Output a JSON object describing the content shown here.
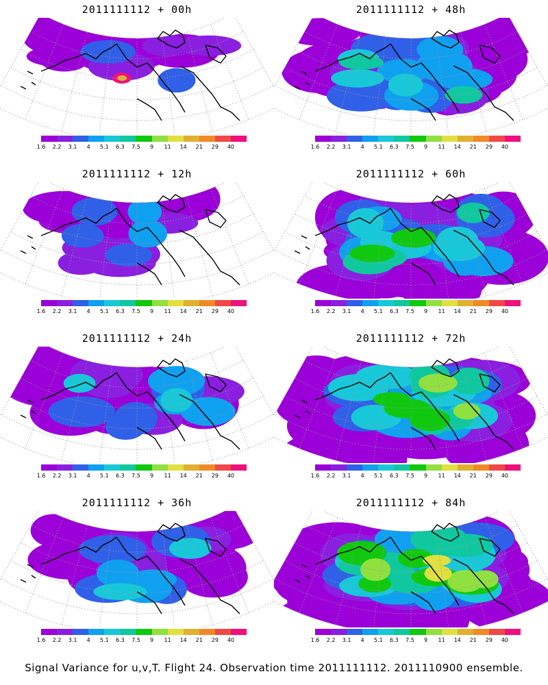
{
  "caption": "Signal Variance for u,v,T. Flight 24. Observation time 2011111112. 2011110900 ensemble.",
  "colorbar": {
    "colors": [
      "#9b00d8",
      "#8a1fe0",
      "#3060e8",
      "#10a0f0",
      "#18c8d8",
      "#10c8a0",
      "#10c810",
      "#90e040",
      "#e0e040",
      "#e0b030",
      "#f08a28",
      "#f04848",
      "#f0107c"
    ],
    "ticks": [
      "1.6",
      "2.2",
      "3.1",
      "4",
      "5.1",
      "6.3",
      "7.5",
      "9",
      "11",
      "14",
      "21",
      "29",
      "40"
    ]
  },
  "panels": [
    {
      "title": "2011111112 + 00h",
      "intensity": 0
    },
    {
      "title": "2011111112 + 48h",
      "intensity": 3
    },
    {
      "title": "2011111112 + 12h",
      "intensity": 1
    },
    {
      "title": "2011111112 + 60h",
      "intensity": 4
    },
    {
      "title": "2011111112 + 24h",
      "intensity": 2
    },
    {
      "title": "2011111112 + 72h",
      "intensity": 5
    },
    {
      "title": "2011111112 + 36h",
      "intensity": 2
    },
    {
      "title": "2011111112 + 84h",
      "intensity": 6
    }
  ]
}
